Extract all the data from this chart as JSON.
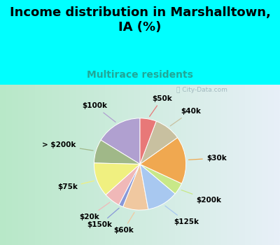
{
  "title": "Income distribution in Marshalltown,\nIA (%)",
  "subtitle": "Multirace residents",
  "watermark": "City-Data.com",
  "slices": [
    {
      "label": "$100k",
      "value": 15.5,
      "color": "#b0a0d0"
    },
    {
      "label": "> $200k",
      "value": 8.0,
      "color": "#a0b888"
    },
    {
      "label": "$75k",
      "value": 11.5,
      "color": "#f0f080"
    },
    {
      "label": "$20k",
      "value": 5.5,
      "color": "#f0b8b8"
    },
    {
      "label": "$150k",
      "value": 1.5,
      "color": "#8898d8"
    },
    {
      "label": "$60k",
      "value": 8.5,
      "color": "#f0c8a0"
    },
    {
      "label": "$125k",
      "value": 10.5,
      "color": "#a8c8f0"
    },
    {
      "label": "$200k",
      "value": 4.0,
      "color": "#c8e888"
    },
    {
      "label": "$30k",
      "value": 16.0,
      "color": "#f0a850"
    },
    {
      "label": "$40k",
      "value": 9.0,
      "color": "#c8c0a0"
    },
    {
      "label": "$50k",
      "value": 5.5,
      "color": "#e87878"
    }
  ],
  "background_color": "#00ffff",
  "panel_color_left": "#b8e8c8",
  "panel_color_right": "#e8f0f8",
  "title_fontsize": 13,
  "subtitle_fontsize": 10,
  "subtitle_color": "#20a898",
  "label_fontsize": 7.5,
  "start_angle": 90
}
